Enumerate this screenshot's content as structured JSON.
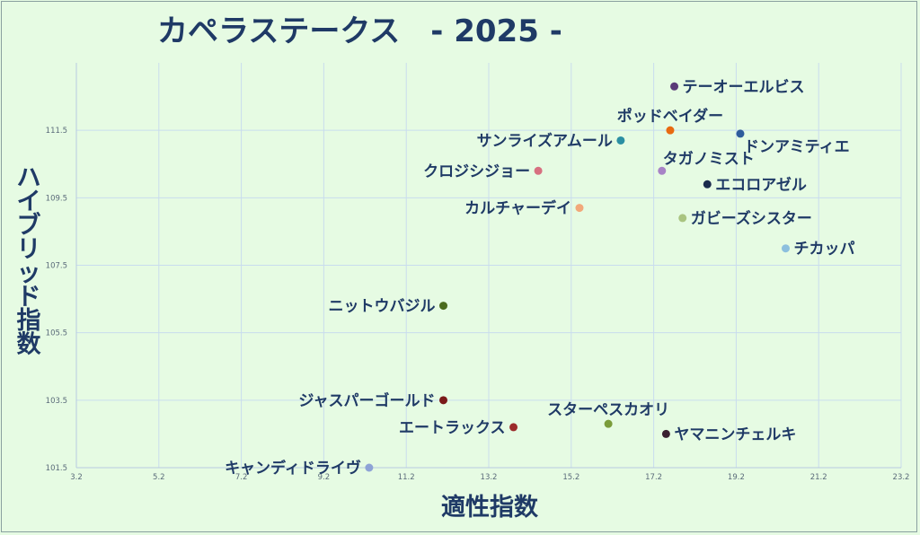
{
  "chart_data": {
    "type": "scatter",
    "title": "カペラステークス　- 2025 -",
    "xlabel": "適性指数",
    "ylabel": "ハイブリッド指数",
    "xlim": [
      3.2,
      23.2
    ],
    "ylim": [
      101.5,
      113.5
    ],
    "x_ticks": [
      "3.2",
      "5.2",
      "7.2",
      "9.2",
      "11.2",
      "13.2",
      "15.2",
      "17.2",
      "19.2",
      "21.2",
      "23.2"
    ],
    "y_ticks": [
      "101.5",
      "103.5",
      "105.5",
      "107.5",
      "109.5",
      "111.5"
    ],
    "grid": true,
    "points": [
      {
        "label": "テーオーエルビス",
        "x": 17.7,
        "y": 112.8,
        "color": "#5b3a78",
        "anchor": "right"
      },
      {
        "label": "ポッドベイダー",
        "x": 17.6,
        "y": 111.5,
        "color": "#e86a10",
        "anchor": "above"
      },
      {
        "label": "ドンアミティエ",
        "x": 19.3,
        "y": 111.4,
        "color": "#2f5c9c",
        "anchor": "below-right"
      },
      {
        "label": "サンライズアムール",
        "x": 16.4,
        "y": 111.2,
        "color": "#2b8fa3",
        "anchor": "left"
      },
      {
        "label": "タガノミスト",
        "x": 17.4,
        "y": 110.3,
        "color": "#a783c6",
        "anchor": "above-right"
      },
      {
        "label": "クロジシジョー",
        "x": 14.4,
        "y": 110.3,
        "color": "#d77080",
        "anchor": "left"
      },
      {
        "label": "エコロアゼル",
        "x": 18.5,
        "y": 109.9,
        "color": "#1a2b4d",
        "anchor": "right"
      },
      {
        "label": "カルチャーデイ",
        "x": 15.4,
        "y": 109.2,
        "color": "#f2a87a",
        "anchor": "left"
      },
      {
        "label": "ガビーズシスター",
        "x": 17.9,
        "y": 108.9,
        "color": "#a9c480",
        "anchor": "right"
      },
      {
        "label": "チカッパ",
        "x": 20.4,
        "y": 108.0,
        "color": "#8cbfde",
        "anchor": "right"
      },
      {
        "label": "ニットウバジル",
        "x": 12.1,
        "y": 106.3,
        "color": "#4b6b1e",
        "anchor": "left"
      },
      {
        "label": "ジャスパーゴールド",
        "x": 12.1,
        "y": 103.5,
        "color": "#7a1a1a",
        "anchor": "left"
      },
      {
        "label": "スターペスカオリ",
        "x": 16.1,
        "y": 102.8,
        "color": "#7a9c3a",
        "anchor": "above"
      },
      {
        "label": "エートラックス",
        "x": 13.8,
        "y": 102.7,
        "color": "#9c2b2b",
        "anchor": "left"
      },
      {
        "label": "ヤマニンチェルキ",
        "x": 17.5,
        "y": 102.5,
        "color": "#3a2030",
        "anchor": "right"
      },
      {
        "label": "キャンディドライヴ",
        "x": 10.3,
        "y": 101.5,
        "color": "#8ea3d6",
        "anchor": "left"
      }
    ]
  }
}
